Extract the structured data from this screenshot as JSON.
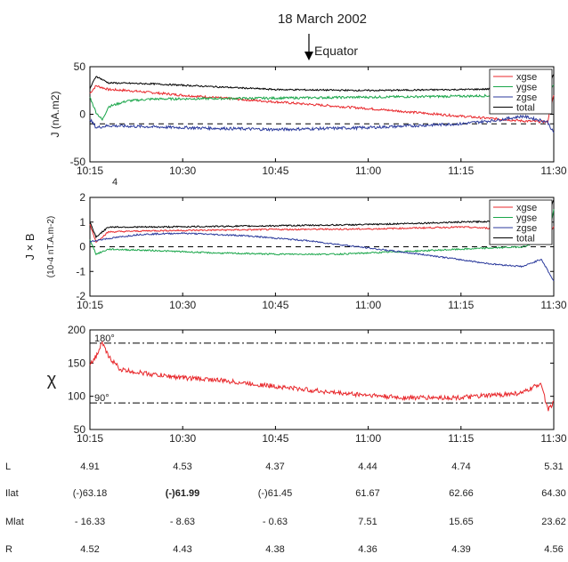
{
  "figure": {
    "title": "18 March 2002",
    "marker_label": "Equator"
  },
  "chart_data": [
    {
      "type": "line",
      "ylabel": "J (nA.m2)",
      "ylim": [
        -50,
        50
      ],
      "yticks": [
        50,
        0,
        -50
      ],
      "x_ticks": [
        "10:15",
        "10:30",
        "10:45",
        "11:00",
        "11:15",
        "11:30"
      ],
      "x_minutes": [
        0,
        15,
        30,
        45,
        60,
        75
      ],
      "extra_label": "4",
      "reference_line": -10,
      "legend": {
        "position": "top-right",
        "entries": [
          "xgse",
          "ygse",
          "zgse",
          "total"
        ]
      },
      "series": [
        {
          "name": "xgse",
          "color": "#e8272b",
          "noise": 1.2,
          "points": [
            [
              0,
              22
            ],
            [
              1,
              30
            ],
            [
              3,
              26
            ],
            [
              6,
              25
            ],
            [
              15,
              20
            ],
            [
              30,
              13
            ],
            [
              45,
              6
            ],
            [
              60,
              -2
            ],
            [
              70,
              -7
            ],
            [
              74,
              -8
            ],
            [
              75,
              20
            ]
          ]
        },
        {
          "name": "ygse",
          "color": "#1aa64a",
          "noise": 1.2,
          "points": [
            [
              0,
              18
            ],
            [
              1,
              2
            ],
            [
              2,
              -6
            ],
            [
              3,
              8
            ],
            [
              6,
              14
            ],
            [
              10,
              16
            ],
            [
              30,
              17
            ],
            [
              45,
              18
            ],
            [
              60,
              19
            ],
            [
              70,
              20
            ],
            [
              74,
              22
            ],
            [
              75,
              30
            ]
          ]
        },
        {
          "name": "zgse",
          "color": "#2b3a9c",
          "noise": 1.5,
          "points": [
            [
              0,
              -5
            ],
            [
              1,
              -14
            ],
            [
              3,
              -12
            ],
            [
              15,
              -14
            ],
            [
              30,
              -16
            ],
            [
              45,
              -14
            ],
            [
              60,
              -10
            ],
            [
              66,
              -6
            ],
            [
              70,
              -2
            ],
            [
              74,
              -8
            ],
            [
              75,
              -20
            ],
            [
              75,
              28
            ]
          ]
        },
        {
          "name": "total",
          "color": "#000000",
          "noise": 0.8,
          "points": [
            [
              0,
              27
            ],
            [
              1,
              40
            ],
            [
              3,
              33
            ],
            [
              10,
              32
            ],
            [
              20,
              29
            ],
            [
              30,
              26
            ],
            [
              45,
              25
            ],
            [
              60,
              26
            ],
            [
              70,
              27
            ],
            [
              74,
              29
            ],
            [
              75,
              42
            ]
          ]
        }
      ]
    },
    {
      "type": "line",
      "ylabel": "J × B",
      "ylabel_units": "(10-4 nT.A.m-2)",
      "ylim": [
        -2,
        2
      ],
      "yticks": [
        2,
        1,
        0,
        -1,
        -2
      ],
      "x_ticks": [
        "10:15",
        "10:30",
        "10:45",
        "11:00",
        "11:15",
        "11:30"
      ],
      "x_minutes": [
        0,
        15,
        30,
        45,
        60,
        75
      ],
      "reference_line": 0,
      "legend": {
        "position": "top-right",
        "entries": [
          "xgse",
          "ygse",
          "zgse",
          "total"
        ]
      },
      "series": [
        {
          "name": "xgse",
          "color": "#e8272b",
          "noise": 0.03,
          "points": [
            [
              0,
              0.9
            ],
            [
              1,
              0.2
            ],
            [
              3,
              0.6
            ],
            [
              10,
              0.65
            ],
            [
              30,
              0.7
            ],
            [
              45,
              0.72
            ],
            [
              60,
              0.8
            ],
            [
              70,
              0.7
            ],
            [
              74,
              0.4
            ],
            [
              75,
              0.8
            ]
          ]
        },
        {
          "name": "ygse",
          "color": "#1aa64a",
          "noise": 0.03,
          "points": [
            [
              0,
              0.3
            ],
            [
              1,
              -0.3
            ],
            [
              3,
              -0.1
            ],
            [
              10,
              -0.15
            ],
            [
              20,
              -0.25
            ],
            [
              30,
              -0.3
            ],
            [
              40,
              -0.3
            ],
            [
              50,
              -0.2
            ],
            [
              60,
              -0.1
            ],
            [
              70,
              0
            ],
            [
              74,
              0.3
            ],
            [
              75,
              1.5
            ]
          ]
        },
        {
          "name": "zgse",
          "color": "#2b3a9c",
          "noise": 0.03,
          "points": [
            [
              0,
              0.2
            ],
            [
              2,
              0.3
            ],
            [
              8,
              0.5
            ],
            [
              15,
              0.55
            ],
            [
              25,
              0.45
            ],
            [
              35,
              0.25
            ],
            [
              45,
              -0.05
            ],
            [
              55,
              -0.35
            ],
            [
              65,
              -0.7
            ],
            [
              70,
              -0.8
            ],
            [
              73,
              -0.5
            ],
            [
              75,
              -1.4
            ]
          ]
        },
        {
          "name": "total",
          "color": "#000000",
          "noise": 0.03,
          "points": [
            [
              0,
              1.0
            ],
            [
              1,
              0.4
            ],
            [
              3,
              0.8
            ],
            [
              10,
              0.8
            ],
            [
              30,
              0.85
            ],
            [
              45,
              0.9
            ],
            [
              60,
              1.0
            ],
            [
              70,
              1.05
            ],
            [
              74,
              1.2
            ],
            [
              75,
              1.9
            ]
          ]
        }
      ]
    },
    {
      "type": "line",
      "ylabel": "χ",
      "ylim": [
        50,
        200
      ],
      "yticks": [
        200,
        150,
        100,
        50
      ],
      "x_ticks": [
        "10:15",
        "10:30",
        "10:45",
        "11:00",
        "11:15",
        "11:30"
      ],
      "x_minutes": [
        0,
        15,
        30,
        45,
        60,
        75
      ],
      "reference_lines": [
        180,
        90
      ],
      "reference_labels": [
        "180°",
        "90°"
      ],
      "series": [
        {
          "color": "#e8272b",
          "noise": 3.5,
          "points": [
            [
              0,
              150
            ],
            [
              1,
              160
            ],
            [
              2,
              180
            ],
            [
              3,
              160
            ],
            [
              5,
              140
            ],
            [
              10,
              133
            ],
            [
              15,
              128
            ],
            [
              20,
              125
            ],
            [
              30,
              115
            ],
            [
              40,
              105
            ],
            [
              45,
              102
            ],
            [
              50,
              98
            ],
            [
              60,
              98
            ],
            [
              70,
              105
            ],
            [
              73,
              120
            ],
            [
              74,
              80
            ],
            [
              75,
              90
            ]
          ]
        }
      ]
    }
  ],
  "table": {
    "rows": [
      {
        "label": "L",
        "values": [
          "4.91",
          "4.53",
          "4.37",
          "4.44",
          "4.74",
          "5.31"
        ],
        "bold": []
      },
      {
        "label": "Ilat",
        "values": [
          "(-)63.18",
          "(-)61.99",
          "(-)61.45",
          "61.67",
          "62.66",
          "64.30"
        ],
        "bold": [
          1
        ]
      },
      {
        "label": "Mlat",
        "values": [
          "- 16.33",
          "- 8.63",
          "- 0.63",
          "7.51",
          "15.65",
          "23.62"
        ],
        "bold": []
      },
      {
        "label": "R",
        "values": [
          "4.52",
          "4.43",
          "4.38",
          "4.36",
          "4.39",
          "4.56"
        ],
        "bold": []
      }
    ]
  }
}
